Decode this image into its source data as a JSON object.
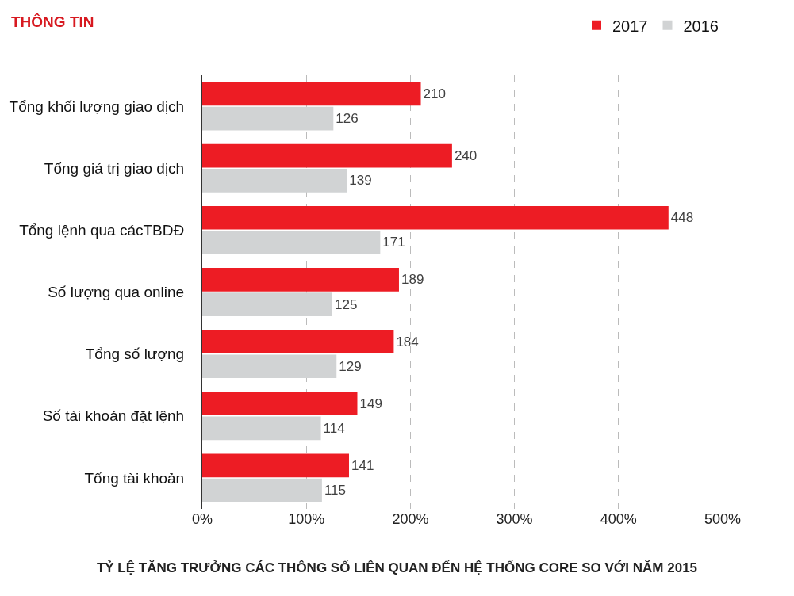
{
  "chart_data": {
    "type": "bar",
    "orientation": "horizontal",
    "title": "TỶ LỆ TĂNG TRƯỞNG CÁC THÔNG SỐ LIÊN QUAN ĐẾN HỆ THỐNG CORE SO VỚI NĂM 2015",
    "annotations": [
      "THÔNG TIN"
    ],
    "categories": [
      "Tổng khối lượng giao dịch",
      "Tổng giá trị giao dịch",
      "Tổng lệnh qua cácTBDĐ",
      "Số lượng qua online",
      "Tổng số lượng",
      "Số tài khoản đặt lệnh",
      "Tổng tài khoản"
    ],
    "series": [
      {
        "name": "2017",
        "color": "#ed1c24",
        "values": [
          210,
          240,
          448,
          189,
          184,
          149,
          141
        ]
      },
      {
        "name": "2016",
        "color": "#d1d3d4",
        "values": [
          126,
          139,
          171,
          125,
          129,
          114,
          115
        ]
      }
    ],
    "xlim": [
      0,
      500
    ],
    "xticks": [
      {
        "value": 0,
        "label": "0%"
      },
      {
        "value": 100,
        "label": "100%"
      },
      {
        "value": 200,
        "label": "200%"
      },
      {
        "value": 300,
        "label": "300%"
      },
      {
        "value": 400,
        "label": "400%"
      },
      {
        "value": 500,
        "label": "500%"
      }
    ],
    "grid": "x",
    "legend": "top right",
    "data_labels": true
  }
}
